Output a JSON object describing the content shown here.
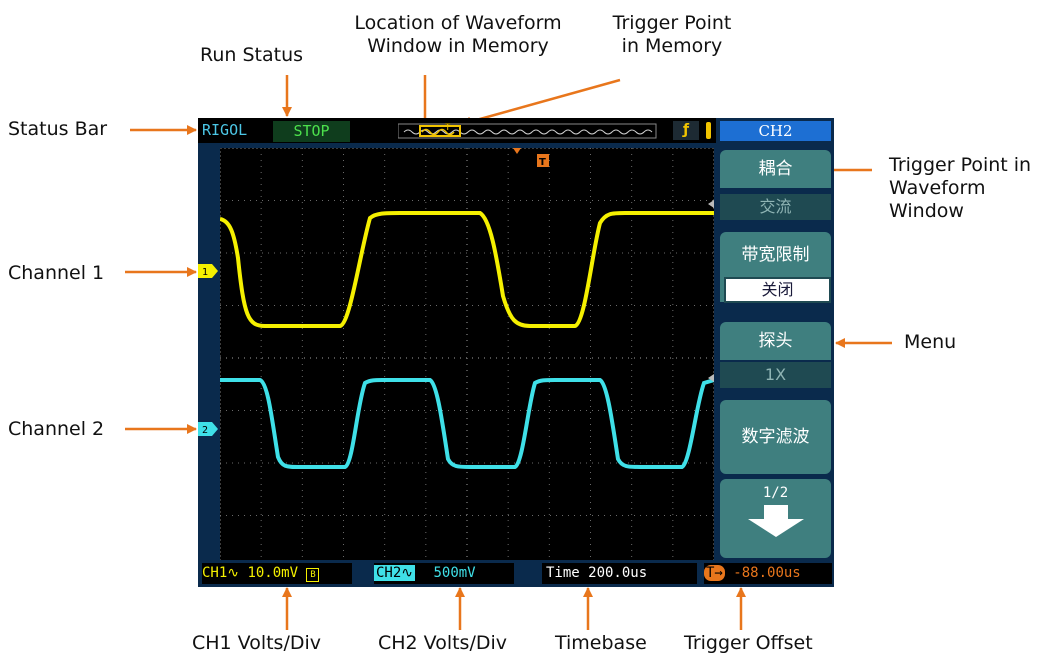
{
  "callouts": {
    "status_bar": "Status Bar",
    "run_status": "Run Status",
    "location_line1": "Location of Waveform",
    "location_line2": "Window in Memory",
    "trigger_mem_line1": "Trigger Point",
    "trigger_mem_line2": "in Memory",
    "trigger_win_line1": "Trigger Point in",
    "trigger_win_line2": "Waveform",
    "trigger_win_line3": "Window",
    "channel1": "Channel 1",
    "channel2": "Channel 2",
    "menu": "Menu",
    "ch1_volts": "CH1 Volts/Div",
    "ch2_volts": "CH2 Volts/Div",
    "timebase": "Timebase",
    "trigger_offset": "Trigger Offset"
  },
  "status_bar": {
    "brand": "RIGOL",
    "run_status": "STOP",
    "trigger_marker": "T",
    "trigger_edge_icon": "rising-edge-icon"
  },
  "screen": {
    "trigger_marker": "T",
    "ch1_marker": "1",
    "ch2_marker": "2"
  },
  "menu": {
    "title": "CH2",
    "coupling_label": "耦合",
    "coupling_value": "交流",
    "bw_limit_label": "带宽限制",
    "bw_limit_value": "关闭",
    "probe_label": "探头",
    "probe_value": "1X",
    "digital_filter_label": "数字滤波",
    "page": "1/2",
    "next_icon": "down-arrow-icon"
  },
  "bottom_bar": {
    "ch1": "CH1∿ 10.0mV",
    "ch1_bw_icon": "B",
    "ch2_tag": "CH2∿",
    "ch2_value": "500mV",
    "time": "Time 200.0us",
    "trig_offset_tag": "T→",
    "trig_offset_value": "-88.00us"
  },
  "colors": {
    "callout_arrow": "#e8761c",
    "ch1": "#f5f000",
    "ch2": "#3fe0e8",
    "accent": "#1d6fd3"
  }
}
